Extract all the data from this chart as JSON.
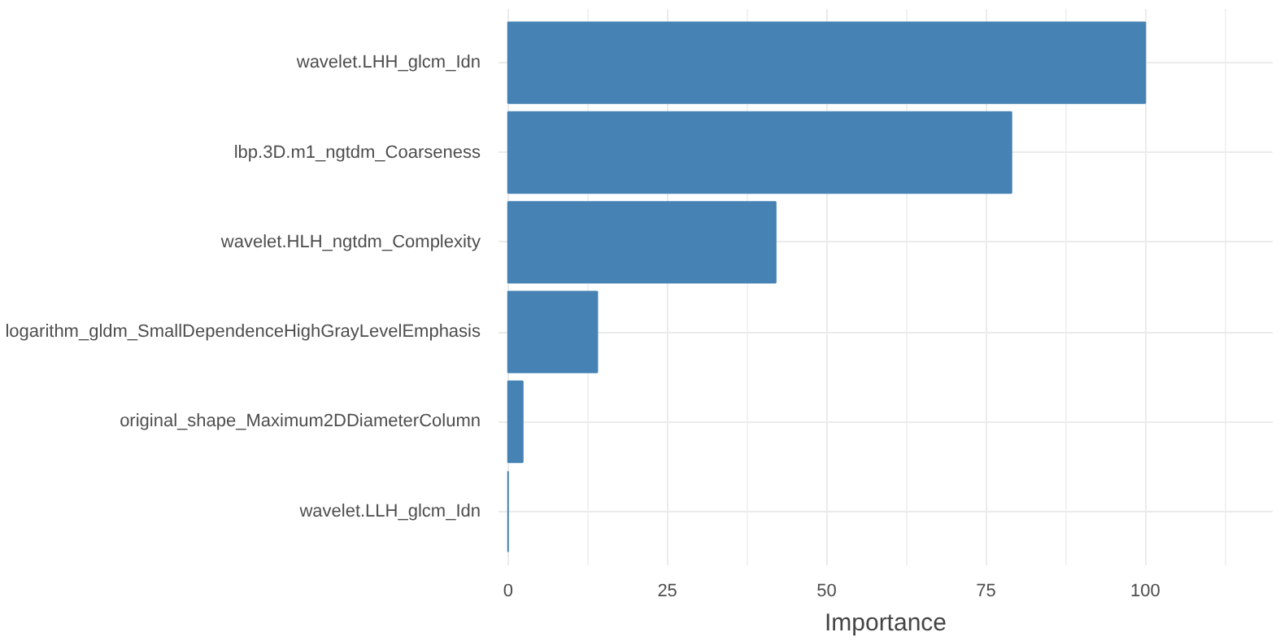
{
  "chart_data": {
    "type": "bar",
    "orientation": "horizontal",
    "xlabel": "Importance",
    "categories": [
      "wavelet.LHH_glcm_Idn",
      "lbp.3D.m1_ngtdm_Coarseness",
      "wavelet.HLH_ngtdm_Complexity",
      "logarithm_gldm_SmallDependenceHighGrayLevelEmphasis",
      "original_shape_Maximum2DDiameterColumn",
      "wavelet.LLH_glcm_Idn"
    ],
    "values": [
      100,
      79,
      42,
      14,
      2.3,
      0
    ],
    "color": "#4682b4",
    "xlim": [
      -1.5,
      120
    ],
    "xticks": [
      0,
      25,
      50,
      75,
      100
    ],
    "grid": true
  }
}
